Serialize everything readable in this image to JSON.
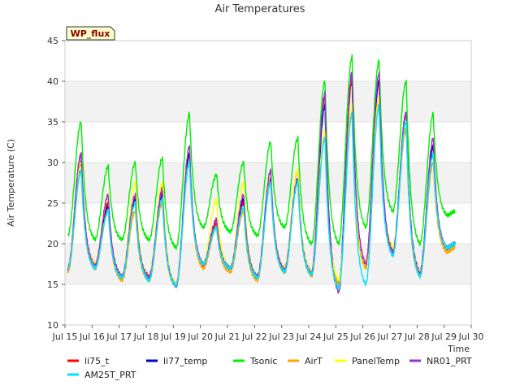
{
  "chart_data": {
    "type": "line",
    "title": "Air Temperatures",
    "xlabel": "Time",
    "ylabel": "Air Temperature (C)",
    "site_label": "WP_flux",
    "ylim": [
      10,
      45
    ],
    "yticks": [
      10,
      15,
      20,
      25,
      30,
      35,
      40,
      45
    ],
    "xlim": [
      15,
      30
    ],
    "xticks": [
      15,
      16,
      17,
      18,
      19,
      20,
      21,
      22,
      23,
      24,
      25,
      26,
      27,
      28,
      29,
      30
    ],
    "xtick_labels": [
      "Jul 15",
      "Jul 16",
      "Jul 17",
      "Jul 18",
      "Jul 19",
      "Jul 20",
      "Jul 21",
      "Jul 22",
      "Jul 23",
      "Jul 24",
      "Jul 25",
      "Jul 26",
      "Jul 27",
      "Jul 28",
      "Jul 29",
      "Jul 30"
    ],
    "grid_bands": true,
    "legend_position": "bottom",
    "daily_pattern": {
      "days": [
        15,
        16,
        17,
        18,
        19,
        20,
        21,
        22,
        23,
        24,
        25,
        26,
        27,
        28,
        29
      ],
      "min_times": [
        15.1,
        16.1,
        17.1,
        18.1,
        19.1,
        20.1,
        21.1,
        22.1,
        23.1,
        24.1,
        25.1,
        26.1,
        27.1,
        28.1,
        29.1
      ],
      "peak_times": [
        15.6,
        16.6,
        17.6,
        18.6,
        19.6,
        20.6,
        21.6,
        22.6,
        23.6,
        24.6,
        25.6,
        26.6,
        27.6,
        28.6
      ],
      "end_time": 29.4
    },
    "series": [
      {
        "name": "li75_t",
        "color": "#ff0000",
        "mins": [
          17,
          17.5,
          16,
          16,
          15,
          17.5,
          17,
          16,
          17,
          16.5,
          15,
          17.5,
          19,
          16.5,
          19.5
        ],
        "peaks": [
          31,
          25,
          25.5,
          27,
          31,
          22.5,
          25,
          28,
          29,
          38,
          40,
          40,
          36,
          32
        ],
        "end": 20
      },
      {
        "name": "li77_temp",
        "color": "#0000cc",
        "mins": [
          16.8,
          17,
          15.8,
          15.6,
          14.8,
          17.5,
          17,
          15.8,
          16.5,
          16.2,
          15,
          17.5,
          19,
          16.5,
          19.5
        ],
        "peaks": [
          30,
          24.5,
          25.5,
          26,
          31,
          22,
          25.5,
          28,
          28,
          37,
          41,
          40,
          36,
          32
        ],
        "end": 20
      },
      {
        "name": "Tsonic",
        "color": "#00ee00",
        "mins": [
          21,
          20.5,
          20.5,
          20.5,
          19.5,
          22,
          21.5,
          21,
          22,
          20,
          20,
          22,
          24,
          20,
          23.5
        ],
        "peaks": [
          35,
          29.5,
          30,
          30.5,
          36,
          28.5,
          30,
          32.5,
          33,
          40,
          43,
          42.5,
          40,
          36
        ],
        "end": 24
      },
      {
        "name": "AirT",
        "color": "#ffa500",
        "mins": [
          16.5,
          17,
          15.5,
          15.5,
          14.8,
          17,
          16.5,
          15.5,
          16.5,
          16,
          15,
          17,
          19,
          16,
          19
        ],
        "peaks": [
          29,
          24,
          24,
          25,
          30,
          22,
          24,
          27.5,
          28,
          33,
          36,
          38,
          34,
          30
        ],
        "end": 19.5
      },
      {
        "name": "PanelTemp",
        "color": "#ffff00",
        "mins": [
          17,
          17.5,
          16,
          15.8,
          15,
          17.5,
          17,
          16,
          17,
          16.5,
          15.5,
          17.5,
          19.5,
          16.5,
          19.5
        ],
        "peaks": [
          30,
          26,
          27.5,
          27.5,
          30,
          25.5,
          27.5,
          28.5,
          29,
          34,
          37,
          38,
          35,
          31
        ],
        "end": 20
      },
      {
        "name": "NR01_PRT",
        "color": "#9933cc",
        "mins": [
          17,
          17.3,
          16,
          15.8,
          14.8,
          17.5,
          17,
          16,
          16.8,
          16.3,
          14,
          17.5,
          19,
          16.3,
          19.5
        ],
        "peaks": [
          31,
          26,
          26,
          26.5,
          32,
          23,
          26,
          29,
          28,
          38.5,
          41,
          41,
          36,
          33
        ],
        "end": 20
      },
      {
        "name": "AM25T_PRT",
        "color": "#00e5ff",
        "mins": [
          17,
          17,
          15.8,
          15.5,
          14.8,
          17.5,
          17,
          15.8,
          16.5,
          16.2,
          14.5,
          15,
          18.5,
          16,
          19.5
        ],
        "peaks": [
          29,
          24,
          25,
          25.5,
          30,
          22,
          24.5,
          27.5,
          27.5,
          33,
          36,
          37,
          35,
          31
        ],
        "end": 20
      }
    ]
  }
}
